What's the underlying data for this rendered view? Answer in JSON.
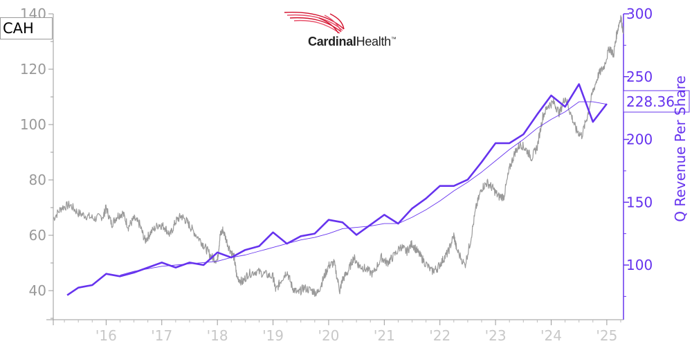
{
  "ticker": "CAH",
  "logo": {
    "name_bold": "Cardinal",
    "name_regular": "Health",
    "trademark": "™",
    "colors": [
      "#d2102c",
      "#e8506a"
    ]
  },
  "chart_data": {
    "type": "line",
    "title": "",
    "xlabel": "",
    "x_ticks": [
      "'16",
      "'17",
      "'18",
      "'19",
      "'20",
      "'21",
      "'22",
      "'23",
      "'24",
      "'25"
    ],
    "x_tick_years": [
      2016,
      2017,
      2018,
      2019,
      2020,
      2021,
      2022,
      2023,
      2024,
      2025
    ],
    "x_range": [
      2015.05,
      2025.3
    ],
    "left_axis": {
      "ylim": [
        30,
        140
      ],
      "ticks": [
        40,
        60,
        80,
        100,
        120,
        140
      ],
      "color": "#999999"
    },
    "right_axis": {
      "label": "Q Revenue Per Share",
      "ylim": [
        60,
        300
      ],
      "ticks": [
        100,
        150,
        200,
        250,
        300
      ],
      "color": "#6633ee"
    },
    "last_value_label": "228.36",
    "series": [
      {
        "axis": "left",
        "color": "#999999",
        "style": "price",
        "points": [
          [
            2015.05,
            66
          ],
          [
            2015.2,
            70
          ],
          [
            2015.35,
            71
          ],
          [
            2015.5,
            68
          ],
          [
            2015.65,
            67
          ],
          [
            2015.8,
            66
          ],
          [
            2015.95,
            67
          ],
          [
            2016.0,
            70
          ],
          [
            2016.1,
            64
          ],
          [
            2016.2,
            67
          ],
          [
            2016.3,
            68
          ],
          [
            2016.4,
            63
          ],
          [
            2016.5,
            66
          ],
          [
            2016.6,
            64
          ],
          [
            2016.7,
            58
          ],
          [
            2016.8,
            61
          ],
          [
            2016.95,
            64
          ],
          [
            2017.05,
            63
          ],
          [
            2017.15,
            60
          ],
          [
            2017.25,
            65
          ],
          [
            2017.35,
            67
          ],
          [
            2017.45,
            65
          ],
          [
            2017.55,
            62
          ],
          [
            2017.7,
            58
          ],
          [
            2017.8,
            55
          ],
          [
            2017.9,
            52
          ],
          [
            2018.0,
            51
          ],
          [
            2018.05,
            60
          ],
          [
            2018.1,
            62
          ],
          [
            2018.2,
            56
          ],
          [
            2018.3,
            52
          ],
          [
            2018.35,
            45
          ],
          [
            2018.45,
            43
          ],
          [
            2018.55,
            46
          ],
          [
            2018.7,
            47
          ],
          [
            2018.85,
            46
          ],
          [
            2019.0,
            45
          ],
          [
            2019.05,
            40
          ],
          [
            2019.15,
            44
          ],
          [
            2019.25,
            47
          ],
          [
            2019.35,
            41
          ],
          [
            2019.45,
            39
          ],
          [
            2019.55,
            41
          ],
          [
            2019.7,
            40
          ],
          [
            2019.8,
            39
          ],
          [
            2019.9,
            44
          ],
          [
            2020.0,
            49
          ],
          [
            2020.1,
            50
          ],
          [
            2020.2,
            40
          ],
          [
            2020.25,
            44
          ],
          [
            2020.35,
            47
          ],
          [
            2020.45,
            52
          ],
          [
            2020.55,
            49
          ],
          [
            2020.65,
            48
          ],
          [
            2020.8,
            46
          ],
          [
            2020.95,
            52
          ],
          [
            2021.05,
            50
          ],
          [
            2021.15,
            52
          ],
          [
            2021.3,
            56
          ],
          [
            2021.4,
            54
          ],
          [
            2021.5,
            57
          ],
          [
            2021.6,
            54
          ],
          [
            2021.7,
            51
          ],
          [
            2021.85,
            47
          ],
          [
            2021.95,
            48
          ],
          [
            2022.05,
            51
          ],
          [
            2022.15,
            54
          ],
          [
            2022.25,
            60
          ],
          [
            2022.3,
            55
          ],
          [
            2022.45,
            49
          ],
          [
            2022.55,
            58
          ],
          [
            2022.65,
            70
          ],
          [
            2022.75,
            77
          ],
          [
            2022.85,
            79
          ],
          [
            2022.95,
            77
          ],
          [
            2023.05,
            74
          ],
          [
            2023.15,
            74
          ],
          [
            2023.25,
            84
          ],
          [
            2023.35,
            90
          ],
          [
            2023.45,
            93
          ],
          [
            2023.55,
            91
          ],
          [
            2023.65,
            88
          ],
          [
            2023.75,
            92
          ],
          [
            2023.85,
            103
          ],
          [
            2023.95,
            107
          ],
          [
            2024.05,
            108
          ],
          [
            2024.15,
            104
          ],
          [
            2024.25,
            110
          ],
          [
            2024.35,
            104
          ],
          [
            2024.45,
            98
          ],
          [
            2024.55,
            96
          ],
          [
            2024.65,
            103
          ],
          [
            2024.75,
            112
          ],
          [
            2024.85,
            118
          ],
          [
            2024.95,
            121
          ],
          [
            2025.05,
            128
          ],
          [
            2025.12,
            125
          ],
          [
            2025.18,
            133
          ],
          [
            2025.25,
            139
          ],
          [
            2025.3,
            133
          ]
        ]
      },
      {
        "axis": "right",
        "color": "#6633ee",
        "style": "bold",
        "points": [
          [
            2015.3,
            76
          ],
          [
            2015.5,
            82
          ],
          [
            2015.75,
            84
          ],
          [
            2016.0,
            93
          ],
          [
            2016.25,
            91
          ],
          [
            2016.5,
            94
          ],
          [
            2016.75,
            98
          ],
          [
            2017.0,
            102
          ],
          [
            2017.25,
            98
          ],
          [
            2017.5,
            102
          ],
          [
            2017.75,
            100
          ],
          [
            2018.0,
            110
          ],
          [
            2018.25,
            106
          ],
          [
            2018.5,
            112
          ],
          [
            2018.75,
            115
          ],
          [
            2019.0,
            126
          ],
          [
            2019.25,
            117
          ],
          [
            2019.5,
            123
          ],
          [
            2019.75,
            125
          ],
          [
            2020.0,
            136
          ],
          [
            2020.25,
            134
          ],
          [
            2020.5,
            124
          ],
          [
            2020.75,
            132
          ],
          [
            2021.0,
            140
          ],
          [
            2021.25,
            133
          ],
          [
            2021.5,
            145
          ],
          [
            2021.75,
            153
          ],
          [
            2022.0,
            163
          ],
          [
            2022.25,
            163
          ],
          [
            2022.5,
            168
          ],
          [
            2022.75,
            182
          ],
          [
            2023.0,
            197
          ],
          [
            2023.25,
            197
          ],
          [
            2023.5,
            204
          ],
          [
            2023.75,
            220
          ],
          [
            2024.0,
            235
          ],
          [
            2024.25,
            226
          ],
          [
            2024.5,
            244
          ],
          [
            2024.75,
            214
          ],
          [
            2025.0,
            228.36
          ]
        ]
      },
      {
        "axis": "right",
        "color": "#6633ee",
        "style": "thin",
        "points": [
          [
            2016.25,
            92
          ],
          [
            2016.5,
            95
          ],
          [
            2016.75,
            97
          ],
          [
            2017.0,
            99
          ],
          [
            2017.25,
            100
          ],
          [
            2017.5,
            101
          ],
          [
            2017.75,
            102
          ],
          [
            2018.0,
            103
          ],
          [
            2018.25,
            106
          ],
          [
            2018.5,
            108
          ],
          [
            2018.75,
            111
          ],
          [
            2019.0,
            114
          ],
          [
            2019.25,
            117
          ],
          [
            2019.5,
            120
          ],
          [
            2019.75,
            122
          ],
          [
            2020.0,
            125
          ],
          [
            2020.25,
            129
          ],
          [
            2020.5,
            130
          ],
          [
            2020.75,
            131
          ],
          [
            2021.0,
            133
          ],
          [
            2021.25,
            133
          ],
          [
            2021.5,
            138
          ],
          [
            2021.75,
            144
          ],
          [
            2022.0,
            151
          ],
          [
            2022.25,
            159
          ],
          [
            2022.5,
            166
          ],
          [
            2022.75,
            174
          ],
          [
            2023.0,
            183
          ],
          [
            2023.25,
            192
          ],
          [
            2023.5,
            200
          ],
          [
            2023.75,
            209
          ],
          [
            2024.0,
            216
          ],
          [
            2024.25,
            222
          ],
          [
            2024.5,
            230
          ],
          [
            2024.75,
            230
          ],
          [
            2025.0,
            228
          ]
        ]
      }
    ]
  }
}
